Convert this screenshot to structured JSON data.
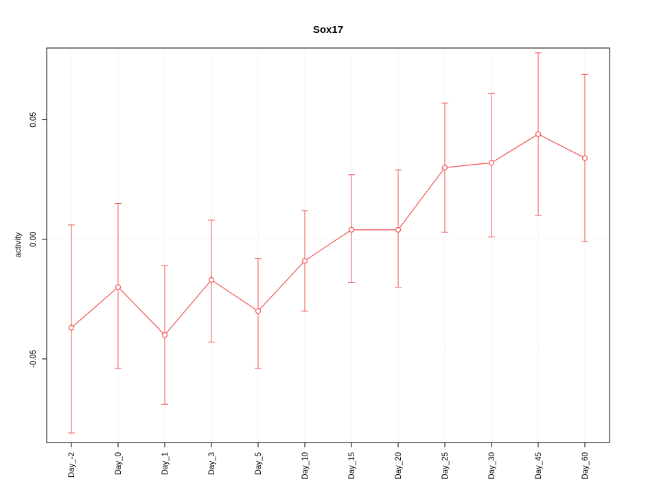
{
  "chart_data": {
    "type": "line",
    "title": "Sox17",
    "xlabel": "",
    "ylabel": "activity",
    "categories": [
      "Day_-2",
      "Day_0",
      "Day_1",
      "Day_3",
      "Day_5",
      "Day_10",
      "Day_15",
      "Day_20",
      "Day_25",
      "Day_30",
      "Day_45",
      "Day_60"
    ],
    "series": [
      {
        "name": "activity",
        "values": [
          -0.037,
          -0.02,
          -0.04,
          -0.017,
          -0.03,
          -0.009,
          0.004,
          0.004,
          0.03,
          0.032,
          0.044,
          0.034
        ],
        "error_high": [
          0.006,
          0.015,
          -0.011,
          0.008,
          -0.008,
          0.012,
          0.027,
          0.029,
          0.057,
          0.061,
          0.078,
          0.069
        ],
        "error_low": [
          -0.081,
          -0.054,
          -0.069,
          -0.043,
          -0.054,
          -0.03,
          -0.018,
          -0.02,
          0.003,
          0.001,
          0.01,
          -0.001
        ]
      }
    ],
    "ylim": [
      -0.085,
      0.08
    ],
    "yticks": [
      -0.05,
      0.0,
      0.05
    ],
    "ytick_labels": [
      "-0.05",
      "0.00",
      "0.05"
    ],
    "grid": "dotted vertical line at each category; dotted horizontal line at y=0",
    "legend_position": "none",
    "marker": "open-circle",
    "line_color": "#f0524f",
    "grid_color": "#d6d6d6",
    "axis_color": "#000000",
    "background_color": "#ffffff"
  }
}
